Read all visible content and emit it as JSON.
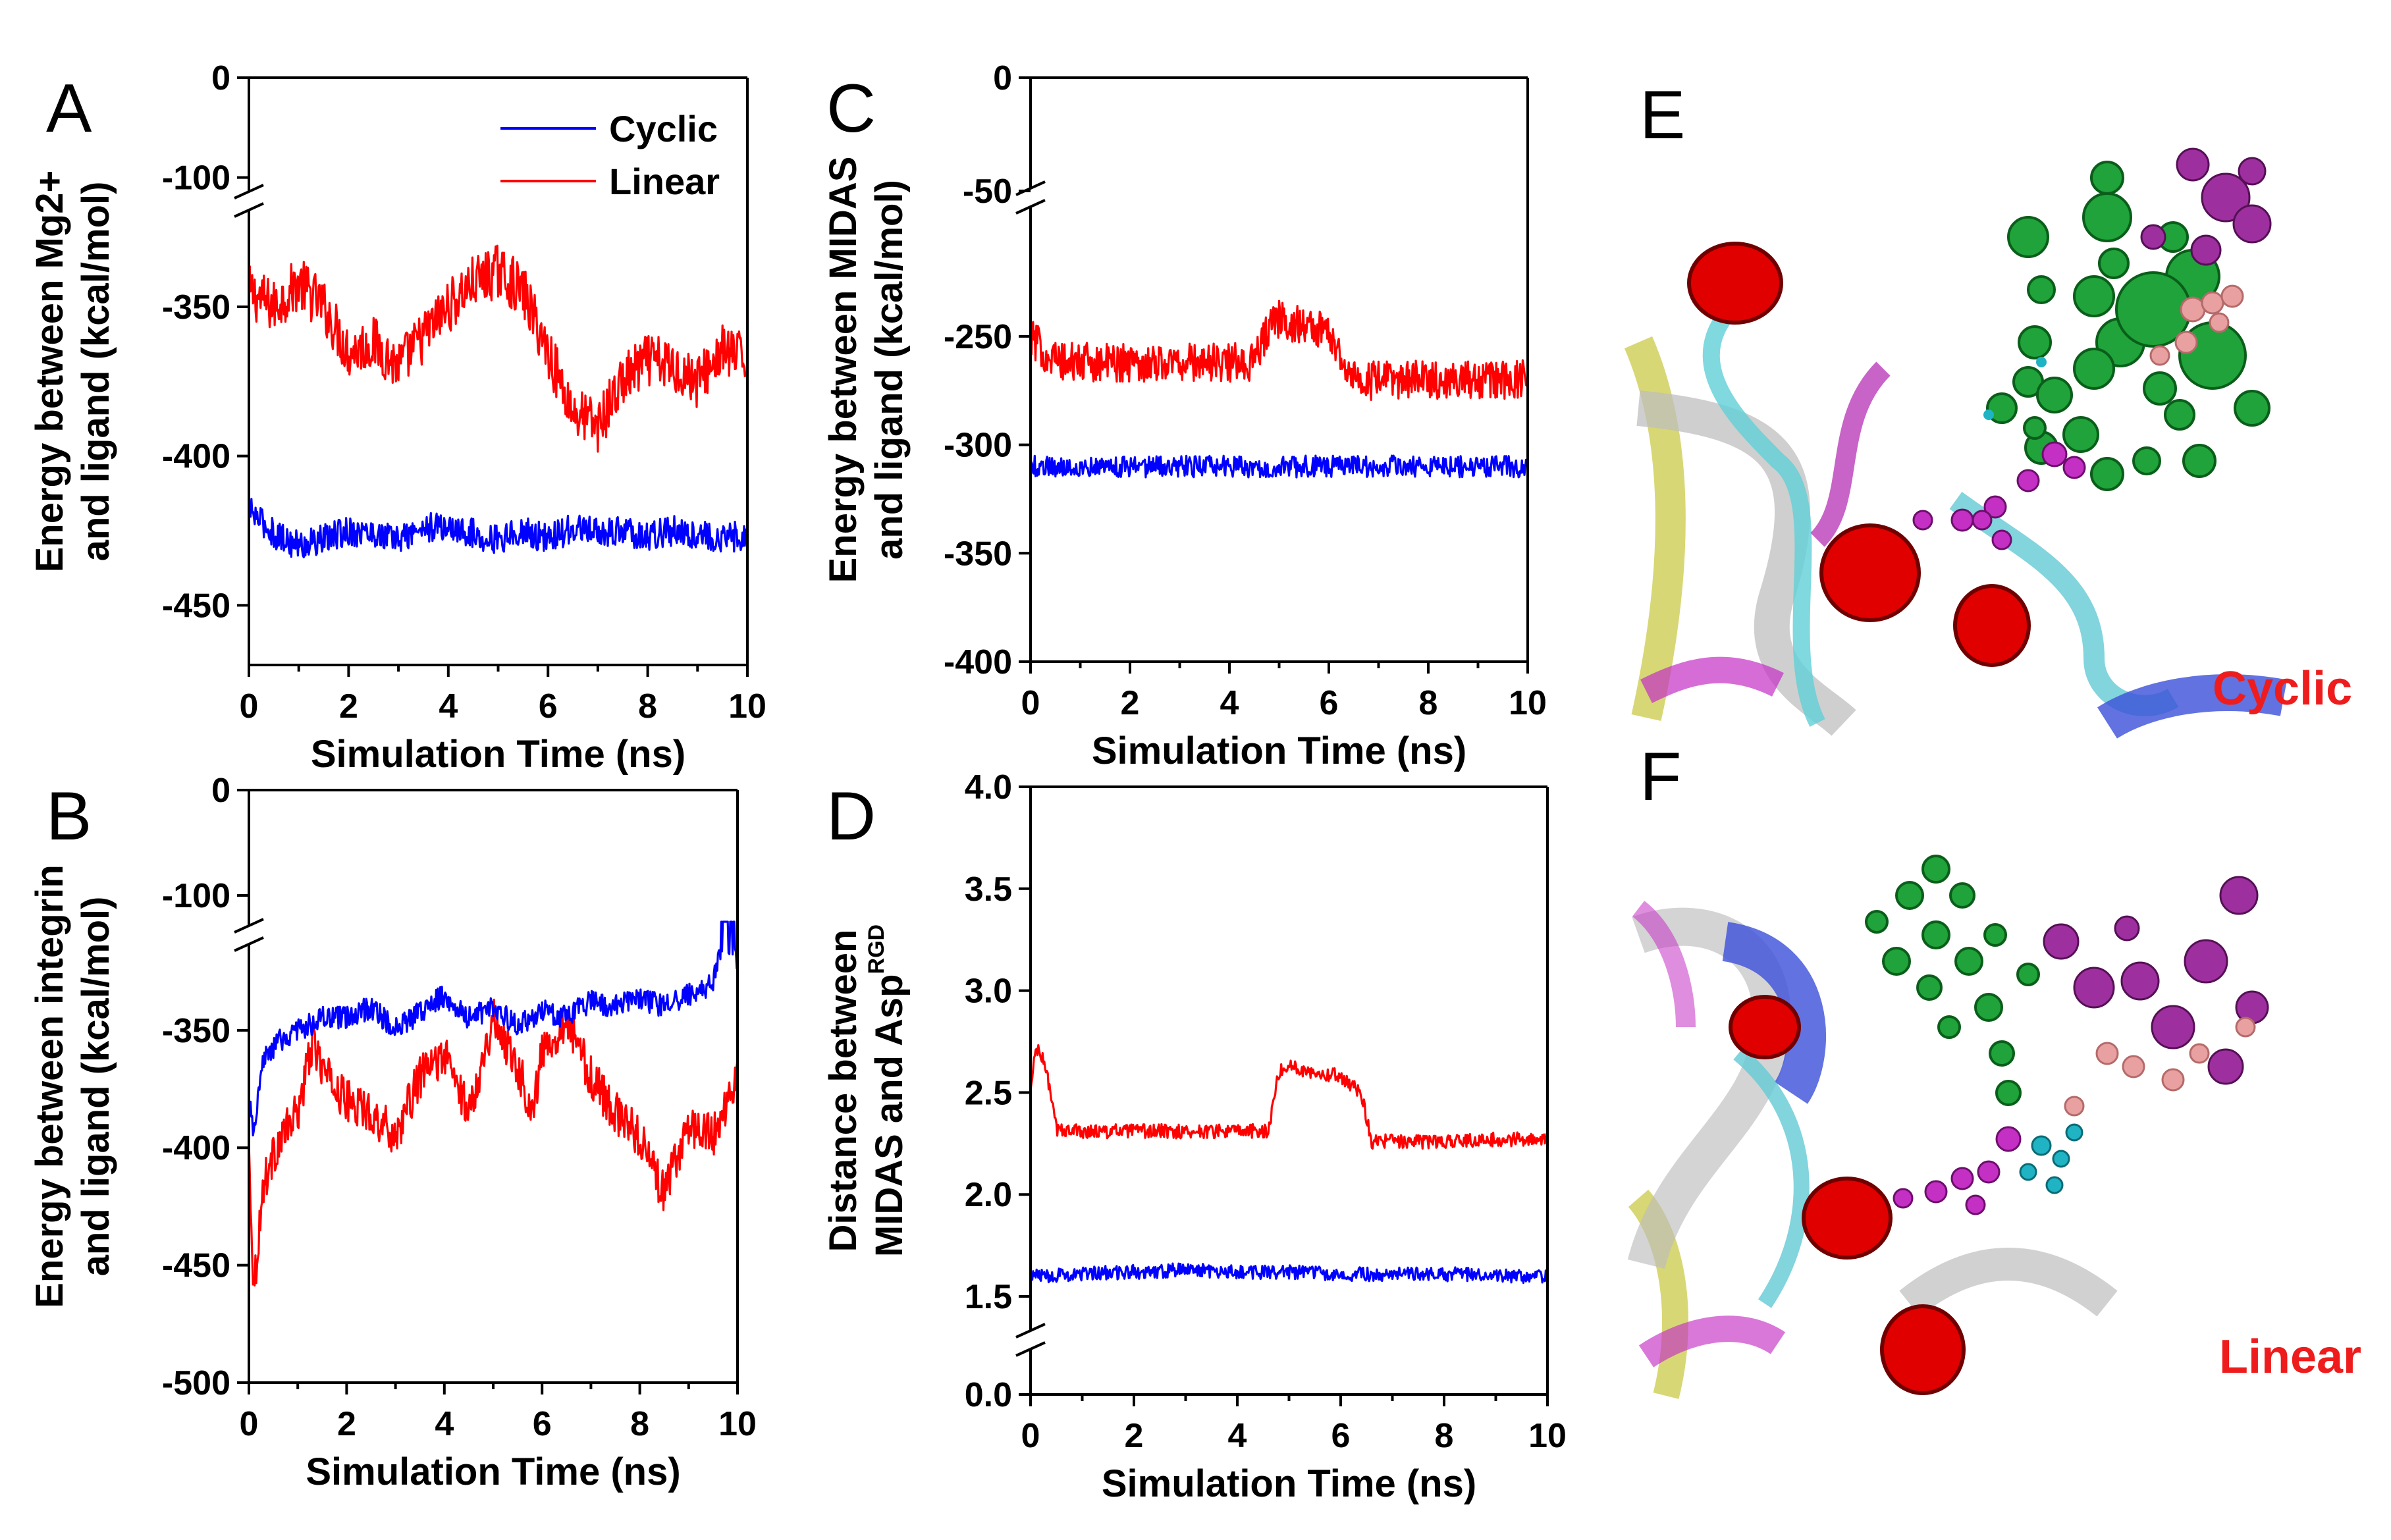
{
  "colors": {
    "cyclic": "#0000ff",
    "linear": "#ff0000",
    "axis": "#000000"
  },
  "chart_data": [
    {
      "panel": "A",
      "type": "line",
      "xlabel": "Simulation Time (ns)",
      "ylabel_line1": "Energy between Mg2+",
      "ylabel_line2": "and ligand (kcal/mol)",
      "xlim": [
        0,
        10
      ],
      "ylim": [
        -470,
        0
      ],
      "y_break": [
        -320,
        -120
      ],
      "xticks": [
        "0",
        "2",
        "4",
        "6",
        "8",
        "10"
      ],
      "yticks": [
        "0",
        "-100",
        "-350",
        "-400",
        "-450"
      ],
      "legend": {
        "placement": "top-right",
        "entries": [
          "Cyclic",
          "Linear"
        ]
      },
      "series": [
        {
          "name": "Linear",
          "color": "#ff0000",
          "x": [
            0,
            0.5,
            1,
            1.5,
            2,
            2.5,
            3,
            3.5,
            4,
            4.5,
            5,
            5.5,
            6,
            6.5,
            7,
            7.5,
            8,
            8.5,
            9,
            9.5,
            10
          ],
          "values": [
            -345,
            -350,
            -342,
            -350,
            -365,
            -362,
            -370,
            -360,
            -350,
            -342,
            -338,
            -345,
            -365,
            -385,
            -390,
            -375,
            -368,
            -370,
            -375,
            -365,
            -368
          ]
        },
        {
          "name": "Cyclic",
          "color": "#0000ff",
          "x": [
            0,
            0.5,
            1,
            1.5,
            2,
            2.5,
            3,
            3.5,
            4,
            4.5,
            5,
            5.5,
            6,
            6.5,
            7,
            7.5,
            8,
            8.5,
            9,
            9.5,
            10
          ],
          "values": [
            -418,
            -426,
            -430,
            -428,
            -425,
            -426,
            -428,
            -424,
            -424,
            -426,
            -428,
            -425,
            -428,
            -424,
            -426,
            -425,
            -427,
            -425,
            -426,
            -428,
            -426
          ]
        }
      ]
    },
    {
      "panel": "B",
      "type": "line",
      "xlabel": "Simulation Time (ns)",
      "ylabel_line1": "Energy between integrin",
      "ylabel_line2": "and ligand (kcal/mol)",
      "xlim": [
        0,
        10
      ],
      "ylim": [
        -500,
        0
      ],
      "y_break": [
        -315,
        -125
      ],
      "xticks": [
        "0",
        "2",
        "4",
        "6",
        "8",
        "10"
      ],
      "yticks": [
        "0",
        "-100",
        "-350",
        "-400",
        "-450",
        "-500"
      ],
      "series": [
        {
          "name": "Linear",
          "color": "#ff0000",
          "x": [
            0,
            0.1,
            0.3,
            0.6,
            1,
            1.3,
            1.6,
            2,
            2.5,
            3,
            3.5,
            4,
            4.5,
            5,
            5.5,
            5.8,
            6,
            6.5,
            7,
            7.5,
            8,
            8.5,
            9,
            9.5,
            10
          ],
          "values": [
            -400,
            -460,
            -415,
            -398,
            -385,
            -355,
            -370,
            -380,
            -385,
            -395,
            -370,
            -360,
            -385,
            -345,
            -365,
            -385,
            -360,
            -345,
            -370,
            -385,
            -395,
            -420,
            -390,
            -395,
            -370
          ]
        },
        {
          "name": "Cyclic",
          "color": "#0000ff",
          "x": [
            0,
            0.1,
            0.3,
            0.6,
            1,
            1.5,
            2,
            2.5,
            3,
            3.5,
            4,
            4.5,
            5,
            5.5,
            6,
            6.5,
            7,
            7.5,
            8,
            8.5,
            9,
            9.5,
            9.7,
            10
          ],
          "values": [
            -380,
            -395,
            -362,
            -355,
            -350,
            -345,
            -345,
            -340,
            -350,
            -342,
            -335,
            -345,
            -340,
            -348,
            -342,
            -344,
            -338,
            -340,
            -336,
            -340,
            -335,
            -330,
            -310,
            -320
          ]
        }
      ]
    },
    {
      "panel": "C",
      "type": "line",
      "xlabel": "Simulation Time (ns)",
      "ylabel_line1": "Energy between MIDAS",
      "ylabel_line2": "and ligand (kcal/mol)",
      "xlim": [
        0,
        10
      ],
      "ylim": [
        -400,
        0
      ],
      "y_break": [
        -230,
        -50
      ],
      "xticks": [
        "0",
        "2",
        "4",
        "6",
        "8",
        "10"
      ],
      "yticks": [
        "0",
        "-50",
        "-250",
        "-300",
        "-350",
        "-400"
      ],
      "series": [
        {
          "name": "Linear",
          "color": "#ff0000",
          "x": [
            0,
            0.3,
            0.6,
            1,
            2,
            3,
            4,
            4.5,
            4.8,
            5,
            5.5,
            6,
            6.4,
            6.6,
            7,
            8,
            9,
            10
          ],
          "values": [
            -250,
            -258,
            -262,
            -262,
            -262,
            -262,
            -262,
            -262,
            -245,
            -242,
            -245,
            -248,
            -265,
            -272,
            -270,
            -270,
            -270,
            -270
          ]
        },
        {
          "name": "Cyclic",
          "color": "#0000ff",
          "x": [
            0,
            1,
            2,
            3,
            4,
            5,
            6,
            7,
            8,
            9,
            10
          ],
          "values": [
            -310,
            -310,
            -310,
            -310,
            -310,
            -310,
            -310,
            -310,
            -310,
            -310,
            -310
          ]
        }
      ]
    },
    {
      "panel": "D",
      "type": "line",
      "xlabel": "Simulation Time (ns)",
      "ylabel_line1": "Distance between",
      "ylabel_line2": "MIDAS and Asp",
      "ylabel_superscript": "RGD",
      "xlim": [
        0,
        10
      ],
      "ylim": [
        0,
        4
      ],
      "y_break": [
        0.05,
        1.4
      ],
      "xticks": [
        "0",
        "2",
        "4",
        "6",
        "8",
        "10"
      ],
      "yticks": [
        "0.0",
        "1.5",
        "2.0",
        "2.5",
        "3.0",
        "3.5",
        "4.0"
      ],
      "series": [
        {
          "name": "Linear",
          "color": "#ff0000",
          "x": [
            0,
            0.1,
            0.2,
            0.3,
            0.5,
            1,
            2,
            3,
            4,
            4.6,
            4.8,
            5,
            5.5,
            6,
            6.4,
            6.6,
            7,
            8,
            9,
            10
          ],
          "values": [
            2.5,
            2.72,
            2.68,
            2.62,
            2.32,
            2.31,
            2.31,
            2.31,
            2.31,
            2.31,
            2.6,
            2.63,
            2.6,
            2.58,
            2.5,
            2.26,
            2.26,
            2.26,
            2.27,
            2.27
          ]
        },
        {
          "name": "Cyclic",
          "color": "#0000ff",
          "x": [
            0,
            1,
            2,
            3,
            4,
            5,
            6,
            7,
            8,
            9,
            10
          ],
          "values": [
            1.6,
            1.61,
            1.62,
            1.63,
            1.62,
            1.62,
            1.61,
            1.61,
            1.61,
            1.6,
            1.6
          ]
        }
      ]
    }
  ],
  "structure_panels": [
    {
      "panel": "E",
      "caption": "Cyclic"
    },
    {
      "panel": "F",
      "caption": "Linear"
    }
  ]
}
